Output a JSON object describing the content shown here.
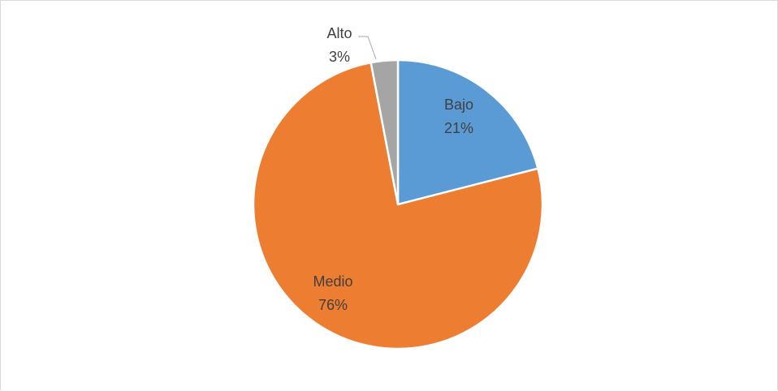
{
  "chart_data": {
    "type": "pie",
    "title": "",
    "slices": [
      {
        "label": "Bajo",
        "percent_label": "21%",
        "value": 21,
        "color": "#5B9BD5"
      },
      {
        "label": "Medio",
        "percent_label": "76%",
        "value": 76,
        "color": "#ED7D31"
      },
      {
        "label": "Alto",
        "percent_label": "3%",
        "value": 3,
        "color": "#A5A5A5"
      }
    ],
    "start_angle_deg": 0,
    "direction": "clockwise",
    "legend": "none",
    "separator_color": "#FFFFFF",
    "leader_line_color": "#A6A6A6"
  }
}
